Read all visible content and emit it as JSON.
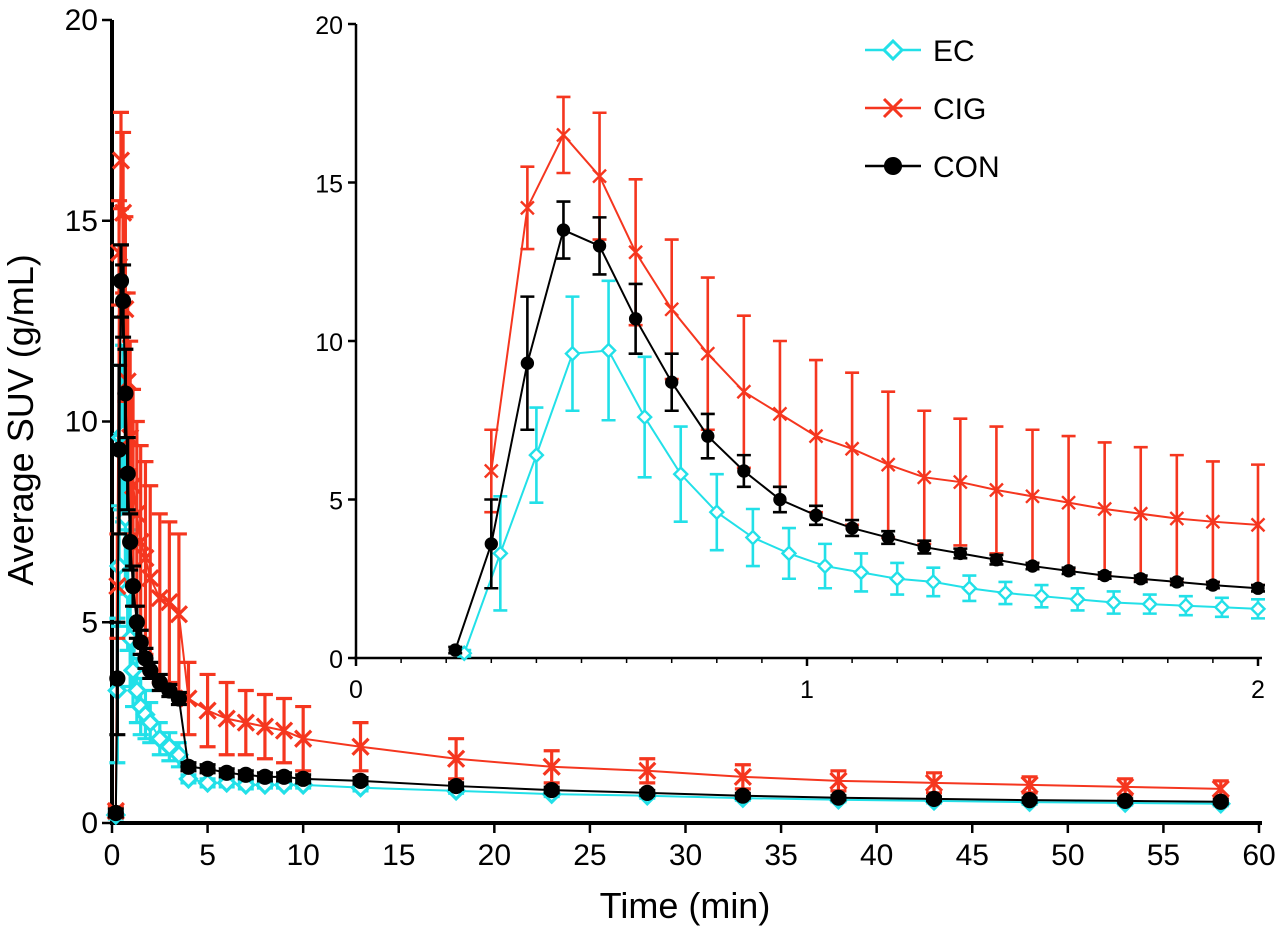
{
  "chart_data": [
    {
      "id": "main",
      "type": "line",
      "xlabel": "Time (min)",
      "ylabel": "Average SUV (g/mL)",
      "xlim": [
        0,
        60
      ],
      "ylim": [
        0,
        20
      ],
      "xticks": [
        "0",
        "5",
        "10",
        "15",
        "20",
        "25",
        "30",
        "35",
        "40",
        "45",
        "50",
        "55",
        "60"
      ],
      "yticks": [
        "0",
        "5",
        "10",
        "15",
        "20"
      ],
      "grid": false,
      "series": [
        {
          "name": "EC",
          "color": "#22e0e8",
          "marker": "diamond",
          "points": [
            {
              "x": 0.2,
              "y": 0.2,
              "err": 0.1
            },
            {
              "x": 0.28,
              "y": 3.3,
              "err": 1.8
            },
            {
              "x": 0.37,
              "y": 6.4,
              "err": 1.5
            },
            {
              "x": 0.47,
              "y": 9.6,
              "err": 1.8
            },
            {
              "x": 0.58,
              "y": 9.7,
              "err": 2.2
            },
            {
              "x": 0.7,
              "y": 7.6,
              "err": 1.9
            },
            {
              "x": 0.82,
              "y": 5.8,
              "err": 1.5
            },
            {
              "x": 0.95,
              "y": 4.6,
              "err": 1.2
            },
            {
              "x": 1.1,
              "y": 3.8,
              "err": 0.9
            },
            {
              "x": 1.3,
              "y": 3.3,
              "err": 0.8
            },
            {
              "x": 1.5,
              "y": 2.9,
              "err": 0.7
            },
            {
              "x": 1.75,
              "y": 2.7,
              "err": 0.6
            },
            {
              "x": 2.0,
              "y": 2.5,
              "err": 0.5
            },
            {
              "x": 2.5,
              "y": 2.1,
              "err": 0.4
            },
            {
              "x": 3.0,
              "y": 1.9,
              "err": 0.35
            },
            {
              "x": 3.5,
              "y": 1.7,
              "err": 0.3
            },
            {
              "x": 4.0,
              "y": 1.1,
              "err": 0.1
            },
            {
              "x": 5.0,
              "y": 1.0,
              "err": 0.1
            },
            {
              "x": 6.0,
              "y": 1.0,
              "err": 0.1
            },
            {
              "x": 7.0,
              "y": 0.95,
              "err": 0.1
            },
            {
              "x": 8.0,
              "y": 0.95,
              "err": 0.08
            },
            {
              "x": 9.0,
              "y": 0.95,
              "err": 0.08
            },
            {
              "x": 10.0,
              "y": 0.95,
              "err": 0.08
            },
            {
              "x": 13.0,
              "y": 0.88,
              "err": 0.08
            },
            {
              "x": 18.0,
              "y": 0.8,
              "err": 0.06
            },
            {
              "x": 23.0,
              "y": 0.72,
              "err": 0.06
            },
            {
              "x": 28.0,
              "y": 0.68,
              "err": 0.06
            },
            {
              "x": 33.0,
              "y": 0.62,
              "err": 0.05
            },
            {
              "x": 38.0,
              "y": 0.58,
              "err": 0.05
            },
            {
              "x": 43.0,
              "y": 0.55,
              "err": 0.05
            },
            {
              "x": 48.0,
              "y": 0.52,
              "err": 0.05
            },
            {
              "x": 53.0,
              "y": 0.5,
              "err": 0.05
            },
            {
              "x": 58.0,
              "y": 0.48,
              "err": 0.05
            }
          ]
        },
        {
          "name": "CIG",
          "color": "#f5361f",
          "marker": "x",
          "points": [
            {
              "x": 0.2,
              "y": 0.3,
              "err": 0.1
            },
            {
              "x": 0.28,
              "y": 5.9,
              "err": 1.3
            },
            {
              "x": 0.37,
              "y": 14.2,
              "err": 1.3
            },
            {
              "x": 0.47,
              "y": 16.5,
              "err": 1.2
            },
            {
              "x": 0.58,
              "y": 15.2,
              "err": 2.0
            },
            {
              "x": 0.7,
              "y": 12.8,
              "err": 2.3
            },
            {
              "x": 0.82,
              "y": 11.0,
              "err": 2.2
            },
            {
              "x": 0.95,
              "y": 9.6,
              "err": 2.4
            },
            {
              "x": 1.1,
              "y": 8.4,
              "err": 2.4
            },
            {
              "x": 1.3,
              "y": 7.7,
              "err": 2.3
            },
            {
              "x": 1.5,
              "y": 7.0,
              "err": 2.4
            },
            {
              "x": 1.75,
              "y": 6.6,
              "err": 2.4
            },
            {
              "x": 2.0,
              "y": 6.1,
              "err": 2.3
            },
            {
              "x": 2.5,
              "y": 5.6,
              "err": 2.1
            },
            {
              "x": 3.0,
              "y": 5.5,
              "err": 2.0
            },
            {
              "x": 3.5,
              "y": 5.2,
              "err": 2.0
            },
            {
              "x": 4.0,
              "y": 3.1,
              "err": 0.9
            },
            {
              "x": 5.0,
              "y": 2.8,
              "err": 0.9
            },
            {
              "x": 6.0,
              "y": 2.6,
              "err": 0.9
            },
            {
              "x": 7.0,
              "y": 2.5,
              "err": 0.8
            },
            {
              "x": 8.0,
              "y": 2.4,
              "err": 0.8
            },
            {
              "x": 9.0,
              "y": 2.3,
              "err": 0.8
            },
            {
              "x": 10.0,
              "y": 2.1,
              "err": 0.8
            },
            {
              "x": 13.0,
              "y": 1.9,
              "err": 0.6
            },
            {
              "x": 18.0,
              "y": 1.6,
              "err": 0.5
            },
            {
              "x": 23.0,
              "y": 1.4,
              "err": 0.4
            },
            {
              "x": 28.0,
              "y": 1.3,
              "err": 0.3
            },
            {
              "x": 33.0,
              "y": 1.15,
              "err": 0.3
            },
            {
              "x": 38.0,
              "y": 1.05,
              "err": 0.25
            },
            {
              "x": 43.0,
              "y": 1.0,
              "err": 0.25
            },
            {
              "x": 48.0,
              "y": 0.95,
              "err": 0.2
            },
            {
              "x": 53.0,
              "y": 0.9,
              "err": 0.2
            },
            {
              "x": 58.0,
              "y": 0.85,
              "err": 0.2
            }
          ]
        },
        {
          "name": "CON",
          "color": "#000000",
          "marker": "circle",
          "points": [
            {
              "x": 0.2,
              "y": 0.25,
              "err": 0.1
            },
            {
              "x": 0.28,
              "y": 3.6,
              "err": 1.4
            },
            {
              "x": 0.37,
              "y": 9.3,
              "err": 2.1
            },
            {
              "x": 0.47,
              "y": 13.5,
              "err": 0.9
            },
            {
              "x": 0.58,
              "y": 13.0,
              "err": 0.9
            },
            {
              "x": 0.7,
              "y": 10.7,
              "err": 1.1
            },
            {
              "x": 0.82,
              "y": 8.7,
              "err": 0.9
            },
            {
              "x": 0.95,
              "y": 7.0,
              "err": 0.7
            },
            {
              "x": 1.1,
              "y": 5.9,
              "err": 0.5
            },
            {
              "x": 1.3,
              "y": 5.0,
              "err": 0.4
            },
            {
              "x": 1.5,
              "y": 4.5,
              "err": 0.3
            },
            {
              "x": 1.75,
              "y": 4.1,
              "err": 0.25
            },
            {
              "x": 2.0,
              "y": 3.8,
              "err": 0.2
            },
            {
              "x": 2.5,
              "y": 3.5,
              "err": 0.2
            },
            {
              "x": 3.0,
              "y": 3.3,
              "err": 0.15
            },
            {
              "x": 3.5,
              "y": 3.1,
              "err": 0.15
            },
            {
              "x": 4.0,
              "y": 1.4,
              "err": 0.1
            },
            {
              "x": 5.0,
              "y": 1.35,
              "err": 0.1
            },
            {
              "x": 6.0,
              "y": 1.25,
              "err": 0.1
            },
            {
              "x": 7.0,
              "y": 1.2,
              "err": 0.1
            },
            {
              "x": 8.0,
              "y": 1.15,
              "err": 0.1
            },
            {
              "x": 9.0,
              "y": 1.15,
              "err": 0.1
            },
            {
              "x": 10.0,
              "y": 1.1,
              "err": 0.1
            },
            {
              "x": 13.0,
              "y": 1.05,
              "err": 0.08
            },
            {
              "x": 18.0,
              "y": 0.92,
              "err": 0.08
            },
            {
              "x": 23.0,
              "y": 0.82,
              "err": 0.07
            },
            {
              "x": 28.0,
              "y": 0.75,
              "err": 0.06
            },
            {
              "x": 33.0,
              "y": 0.68,
              "err": 0.06
            },
            {
              "x": 38.0,
              "y": 0.63,
              "err": 0.05
            },
            {
              "x": 43.0,
              "y": 0.6,
              "err": 0.05
            },
            {
              "x": 48.0,
              "y": 0.57,
              "err": 0.05
            },
            {
              "x": 53.0,
              "y": 0.55,
              "err": 0.05
            },
            {
              "x": 58.0,
              "y": 0.53,
              "err": 0.05
            }
          ]
        }
      ]
    },
    {
      "id": "inset",
      "type": "line",
      "xlabel": "",
      "ylabel": "",
      "xlim": [
        0,
        2
      ],
      "ylim": [
        0,
        20
      ],
      "xticks": [
        "0",
        "1",
        "2"
      ],
      "yticks": [
        "0",
        "5",
        "10",
        "15",
        "20"
      ],
      "grid": false,
      "legend_position": "top-right",
      "legend": [
        "EC",
        "CIG",
        "CON"
      ],
      "series": [
        {
          "name": "EC",
          "color": "#22e0e8",
          "marker": "diamond",
          "points": [
            {
              "x": 0.24,
              "y": 0.15,
              "err": 0.1
            },
            {
              "x": 0.32,
              "y": 3.3,
              "err": 1.8
            },
            {
              "x": 0.4,
              "y": 6.4,
              "err": 1.5
            },
            {
              "x": 0.48,
              "y": 9.6,
              "err": 1.8
            },
            {
              "x": 0.56,
              "y": 9.7,
              "err": 2.2
            },
            {
              "x": 0.64,
              "y": 7.6,
              "err": 1.9
            },
            {
              "x": 0.72,
              "y": 5.8,
              "err": 1.5
            },
            {
              "x": 0.8,
              "y": 4.6,
              "err": 1.2
            },
            {
              "x": 0.88,
              "y": 3.8,
              "err": 0.9
            },
            {
              "x": 0.96,
              "y": 3.3,
              "err": 0.8
            },
            {
              "x": 1.04,
              "y": 2.9,
              "err": 0.7
            },
            {
              "x": 1.12,
              "y": 2.7,
              "err": 0.6
            },
            {
              "x": 1.2,
              "y": 2.5,
              "err": 0.5
            },
            {
              "x": 1.28,
              "y": 2.4,
              "err": 0.45
            },
            {
              "x": 1.36,
              "y": 2.2,
              "err": 0.4
            },
            {
              "x": 1.44,
              "y": 2.05,
              "err": 0.35
            },
            {
              "x": 1.52,
              "y": 1.95,
              "err": 0.35
            },
            {
              "x": 1.6,
              "y": 1.85,
              "err": 0.35
            },
            {
              "x": 1.68,
              "y": 1.75,
              "err": 0.35
            },
            {
              "x": 1.76,
              "y": 1.7,
              "err": 0.3
            },
            {
              "x": 1.84,
              "y": 1.65,
              "err": 0.3
            },
            {
              "x": 1.92,
              "y": 1.6,
              "err": 0.3
            },
            {
              "x": 2.0,
              "y": 1.55,
              "err": 0.3
            }
          ]
        },
        {
          "name": "CIG",
          "color": "#f5361f",
          "marker": "x",
          "points": [
            {
              "x": 0.3,
              "y": 5.9,
              "err": 1.3
            },
            {
              "x": 0.38,
              "y": 14.2,
              "err": 1.3
            },
            {
              "x": 0.46,
              "y": 16.5,
              "err": 1.2
            },
            {
              "x": 0.54,
              "y": 15.2,
              "err": 2.0
            },
            {
              "x": 0.62,
              "y": 12.8,
              "err": 2.3
            },
            {
              "x": 0.7,
              "y": 11.0,
              "err": 2.2
            },
            {
              "x": 0.78,
              "y": 9.6,
              "err": 2.4
            },
            {
              "x": 0.86,
              "y": 8.4,
              "err": 2.4
            },
            {
              "x": 0.94,
              "y": 7.7,
              "err": 2.3
            },
            {
              "x": 1.02,
              "y": 7.0,
              "err": 2.4
            },
            {
              "x": 1.1,
              "y": 6.6,
              "err": 2.4
            },
            {
              "x": 1.18,
              "y": 6.1,
              "err": 2.3
            },
            {
              "x": 1.26,
              "y": 5.7,
              "err": 2.1
            },
            {
              "x": 1.34,
              "y": 5.55,
              "err": 2.0
            },
            {
              "x": 1.42,
              "y": 5.3,
              "err": 2.0
            },
            {
              "x": 1.5,
              "y": 5.1,
              "err": 2.1
            },
            {
              "x": 1.58,
              "y": 4.9,
              "err": 2.1
            },
            {
              "x": 1.66,
              "y": 4.7,
              "err": 2.1
            },
            {
              "x": 1.74,
              "y": 4.55,
              "err": 2.1
            },
            {
              "x": 1.82,
              "y": 4.4,
              "err": 2.0
            },
            {
              "x": 1.9,
              "y": 4.3,
              "err": 1.9
            },
            {
              "x": 2.0,
              "y": 4.2,
              "err": 1.9
            }
          ]
        },
        {
          "name": "CON",
          "color": "#000000",
          "marker": "circle",
          "points": [
            {
              "x": 0.22,
              "y": 0.25,
              "err": 0.1
            },
            {
              "x": 0.3,
              "y": 3.6,
              "err": 1.4
            },
            {
              "x": 0.38,
              "y": 9.3,
              "err": 2.1
            },
            {
              "x": 0.46,
              "y": 13.5,
              "err": 0.9
            },
            {
              "x": 0.54,
              "y": 13.0,
              "err": 0.9
            },
            {
              "x": 0.62,
              "y": 10.7,
              "err": 1.1
            },
            {
              "x": 0.7,
              "y": 8.7,
              "err": 0.9
            },
            {
              "x": 0.78,
              "y": 7.0,
              "err": 0.7
            },
            {
              "x": 0.86,
              "y": 5.9,
              "err": 0.5
            },
            {
              "x": 0.94,
              "y": 5.0,
              "err": 0.4
            },
            {
              "x": 1.02,
              "y": 4.5,
              "err": 0.3
            },
            {
              "x": 1.1,
              "y": 4.1,
              "err": 0.25
            },
            {
              "x": 1.18,
              "y": 3.8,
              "err": 0.2
            },
            {
              "x": 1.26,
              "y": 3.5,
              "err": 0.2
            },
            {
              "x": 1.34,
              "y": 3.3,
              "err": 0.15
            },
            {
              "x": 1.42,
              "y": 3.1,
              "err": 0.15
            },
            {
              "x": 1.5,
              "y": 2.9,
              "err": 0.1
            },
            {
              "x": 1.58,
              "y": 2.75,
              "err": 0.1
            },
            {
              "x": 1.66,
              "y": 2.6,
              "err": 0.1
            },
            {
              "x": 1.74,
              "y": 2.5,
              "err": 0.1
            },
            {
              "x": 1.82,
              "y": 2.4,
              "err": 0.1
            },
            {
              "x": 1.9,
              "y": 2.3,
              "err": 0.1
            },
            {
              "x": 2.0,
              "y": 2.2,
              "err": 0.1
            }
          ]
        }
      ]
    }
  ]
}
